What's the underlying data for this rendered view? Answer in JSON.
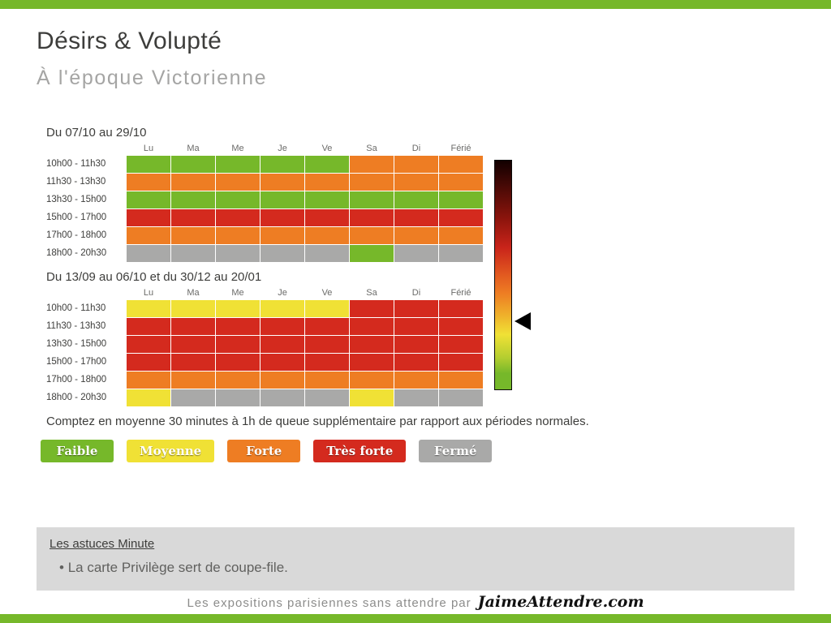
{
  "page": {
    "title": "Désirs & Volupté",
    "subtitle": "À l'époque Victorienne"
  },
  "colors": {
    "accent_bar": "#76b82a",
    "faible": "#76b82a",
    "moyenne": "#f0e135",
    "forte": "#ee7d23",
    "tres_forte": "#d42a1e",
    "ferme": "#a9a9a8"
  },
  "chart_data": [
    {
      "type": "heatmap",
      "title": "Du 07/10 au 29/10",
      "columns": [
        "Lu",
        "Ma",
        "Me",
        "Je",
        "Ve",
        "Sa",
        "Di",
        "Férié"
      ],
      "rows": [
        "10h00 - 11h30",
        "11h30 - 13h30",
        "13h30 - 15h00",
        "15h00 - 17h00",
        "17h00 - 18h00",
        "18h00 - 20h30"
      ],
      "values": [
        [
          "faible",
          "faible",
          "faible",
          "faible",
          "faible",
          "forte",
          "forte",
          "forte"
        ],
        [
          "forte",
          "forte",
          "forte",
          "forte",
          "forte",
          "forte",
          "forte",
          "forte"
        ],
        [
          "faible",
          "faible",
          "faible",
          "faible",
          "faible",
          "faible",
          "faible",
          "faible"
        ],
        [
          "tres_forte",
          "tres_forte",
          "tres_forte",
          "tres_forte",
          "tres_forte",
          "tres_forte",
          "tres_forte",
          "tres_forte"
        ],
        [
          "forte",
          "forte",
          "forte",
          "forte",
          "forte",
          "forte",
          "forte",
          "forte"
        ],
        [
          "ferme",
          "ferme",
          "ferme",
          "ferme",
          "ferme",
          "faible",
          "ferme",
          "ferme"
        ]
      ]
    },
    {
      "type": "heatmap",
      "title": "Du 13/09 au 06/10 et du 30/12 au 20/01",
      "columns": [
        "Lu",
        "Ma",
        "Me",
        "Je",
        "Ve",
        "Sa",
        "Di",
        "Férié"
      ],
      "rows": [
        "10h00 - 11h30",
        "11h30 - 13h30",
        "13h30 - 15h00",
        "15h00 - 17h00",
        "17h00 - 18h00",
        "18h00 - 20h30"
      ],
      "values": [
        [
          "moyenne",
          "moyenne",
          "moyenne",
          "moyenne",
          "moyenne",
          "tres_forte",
          "tres_forte",
          "tres_forte"
        ],
        [
          "tres_forte",
          "tres_forte",
          "tres_forte",
          "tres_forte",
          "tres_forte",
          "tres_forte",
          "tres_forte",
          "tres_forte"
        ],
        [
          "tres_forte",
          "tres_forte",
          "tres_forte",
          "tres_forte",
          "tres_forte",
          "tres_forte",
          "tres_forte",
          "tres_forte"
        ],
        [
          "tres_forte",
          "tres_forte",
          "tres_forte",
          "tres_forte",
          "tres_forte",
          "tres_forte",
          "tres_forte",
          "tres_forte"
        ],
        [
          "forte",
          "forte",
          "forte",
          "forte",
          "forte",
          "forte",
          "forte",
          "forte"
        ],
        [
          "moyenne",
          "ferme",
          "ferme",
          "ferme",
          "ferme",
          "moyenne",
          "ferme",
          "ferme"
        ]
      ]
    }
  ],
  "scale": {
    "stops": [
      "#120000 0%",
      "#4c0a06 12%",
      "#8f150d 26%",
      "#c9241a 38%",
      "#e25a20 50%",
      "#ee7d23 58%",
      "#efb32b 68%",
      "#f0e135 76%",
      "#b5ce30 86%",
      "#76b82a 93%",
      "#76b82a 100%"
    ],
    "pointer_fraction": 0.7
  },
  "note": "Comptez en moyenne 30 minutes à 1h de queue supplémentaire par rapport aux périodes normales.",
  "legend": [
    {
      "key": "faible",
      "label": "Faible"
    },
    {
      "key": "moyenne",
      "label": "Moyenne"
    },
    {
      "key": "forte",
      "label": "Forte"
    },
    {
      "key": "tres_forte",
      "label": "Très forte"
    },
    {
      "key": "ferme",
      "label": "Fermé"
    }
  ],
  "tips": {
    "title": "Les astuces Minute",
    "items": [
      "La carte Privilège sert de coupe-file."
    ]
  },
  "footer": {
    "text": "Les expositions parisiennes sans attendre par",
    "brand": "JaimeAttendre.com"
  }
}
